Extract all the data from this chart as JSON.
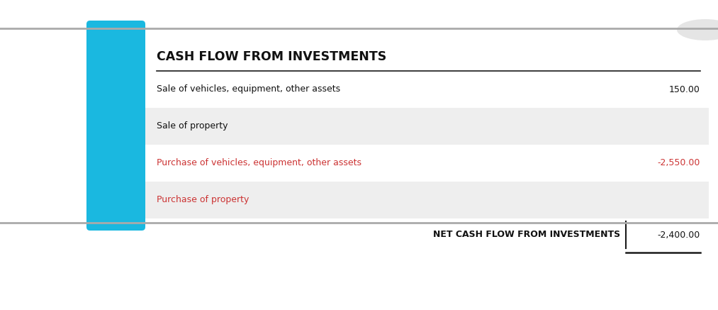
{
  "title": "CASH FLOW FROM INVESTMENTS",
  "rows": [
    {
      "label": "Sale of vehicles, equipment, other assets",
      "value": "150.00",
      "color": "#111111",
      "bg": "white"
    },
    {
      "label": "Sale of property",
      "value": "",
      "color": "#111111",
      "bg": "#eeeeee"
    },
    {
      "label": "Purchase of vehicles, equipment, other assets",
      "value": "-2,550.00",
      "color": "#cc3333",
      "bg": "white"
    },
    {
      "label": "Purchase of property",
      "value": "",
      "color": "#cc3333",
      "bg": "#eeeeee"
    }
  ],
  "net_label": "NET CASH FLOW FROM INVESTMENTS",
  "net_value": "-2,400.00",
  "cyan_bar_color": "#1ab8e0",
  "border_color": "#aaaaaa",
  "title_color": "#111111",
  "separator_line_color": "#1a1a1a",
  "card_bg": "#f2f2f2",
  "white": "#ffffff"
}
